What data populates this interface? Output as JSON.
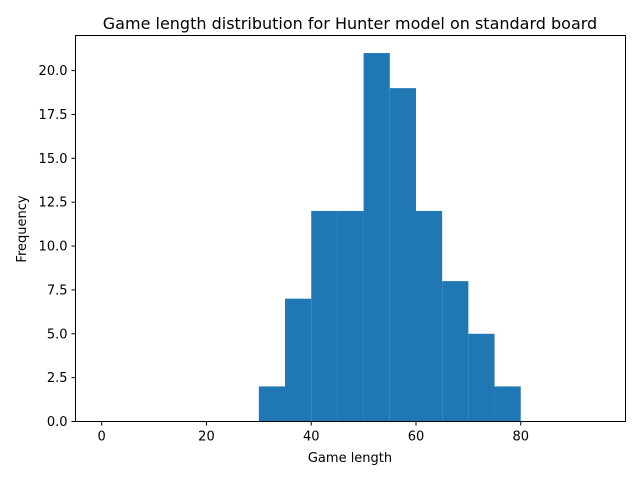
{
  "chart_data": {
    "type": "bar",
    "title": "Game length distribution for Hunter model on standard board",
    "xlabel": "Game length",
    "ylabel": "Frequency",
    "xlim": [
      -5,
      100
    ],
    "ylim": [
      0,
      22
    ],
    "xticks": [
      0,
      20,
      40,
      60,
      80
    ],
    "yticks": [
      0.0,
      2.5,
      5.0,
      7.5,
      10.0,
      12.5,
      15.0,
      17.5,
      20.0
    ],
    "xtick_labels": [
      "0",
      "20",
      "40",
      "60",
      "80"
    ],
    "ytick_labels": [
      "0.0",
      "2.5",
      "5.0",
      "7.5",
      "10.0",
      "12.5",
      "15.0",
      "17.5",
      "20.0"
    ],
    "bar_color": "#1f77b4",
    "bins": [
      {
        "start": 0,
        "end": 5,
        "value": 0
      },
      {
        "start": 5,
        "end": 10,
        "value": 0
      },
      {
        "start": 10,
        "end": 15,
        "value": 0
      },
      {
        "start": 15,
        "end": 20,
        "value": 0
      },
      {
        "start": 20,
        "end": 25,
        "value": 0
      },
      {
        "start": 25,
        "end": 30,
        "value": 0
      },
      {
        "start": 30,
        "end": 35,
        "value": 2
      },
      {
        "start": 35,
        "end": 40,
        "value": 7
      },
      {
        "start": 40,
        "end": 45,
        "value": 12
      },
      {
        "start": 45,
        "end": 50,
        "value": 12
      },
      {
        "start": 50,
        "end": 55,
        "value": 21
      },
      {
        "start": 55,
        "end": 60,
        "value": 19
      },
      {
        "start": 60,
        "end": 65,
        "value": 12
      },
      {
        "start": 65,
        "end": 70,
        "value": 8
      },
      {
        "start": 70,
        "end": 75,
        "value": 5
      },
      {
        "start": 75,
        "end": 80,
        "value": 2
      },
      {
        "start": 80,
        "end": 85,
        "value": 0
      },
      {
        "start": 85,
        "end": 90,
        "value": 0
      },
      {
        "start": 90,
        "end": 95,
        "value": 0
      }
    ],
    "grid": false,
    "legend": "none"
  }
}
